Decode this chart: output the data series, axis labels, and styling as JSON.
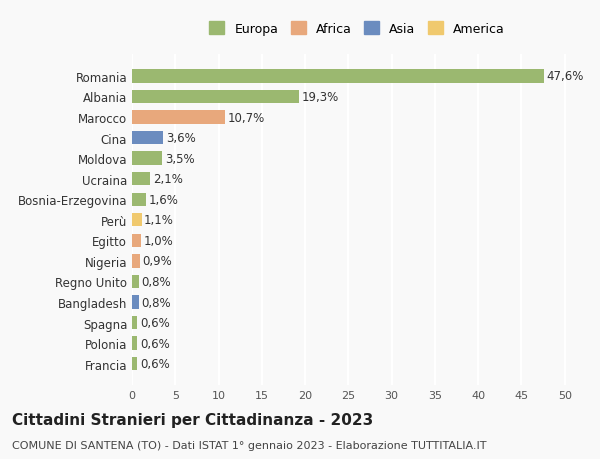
{
  "countries": [
    "Romania",
    "Albania",
    "Marocco",
    "Cina",
    "Moldova",
    "Ucraina",
    "Bosnia-Erzegovina",
    "Perù",
    "Egitto",
    "Nigeria",
    "Regno Unito",
    "Bangladesh",
    "Spagna",
    "Polonia",
    "Francia"
  ],
  "values": [
    47.6,
    19.3,
    10.7,
    3.6,
    3.5,
    2.1,
    1.6,
    1.1,
    1.0,
    0.9,
    0.8,
    0.8,
    0.6,
    0.6,
    0.6
  ],
  "labels": [
    "47,6%",
    "19,3%",
    "10,7%",
    "3,6%",
    "3,5%",
    "2,1%",
    "1,6%",
    "1,1%",
    "1,0%",
    "0,9%",
    "0,8%",
    "0,8%",
    "0,6%",
    "0,6%",
    "0,6%"
  ],
  "continents": [
    "Europa",
    "Europa",
    "Africa",
    "Asia",
    "Europa",
    "Europa",
    "Europa",
    "America",
    "Africa",
    "Africa",
    "Europa",
    "Asia",
    "Europa",
    "Europa",
    "Europa"
  ],
  "continent_colors": {
    "Europa": "#9bb870",
    "Africa": "#e8a87c",
    "Asia": "#6b8cbf",
    "America": "#f0c96e"
  },
  "legend_order": [
    "Europa",
    "Africa",
    "Asia",
    "America"
  ],
  "xlim": [
    0,
    52
  ],
  "xticks": [
    0,
    5,
    10,
    15,
    20,
    25,
    30,
    35,
    40,
    45,
    50
  ],
  "title": "Cittadini Stranieri per Cittadinanza - 2023",
  "subtitle": "COMUNE DI SANTENA (TO) - Dati ISTAT 1° gennaio 2023 - Elaborazione TUTTITALIA.IT",
  "background_color": "#f9f9f9",
  "grid_color": "#ffffff",
  "bar_height": 0.65,
  "label_fontsize": 8.5,
  "ytick_fontsize": 8.5,
  "xtick_fontsize": 8,
  "title_fontsize": 11,
  "subtitle_fontsize": 8
}
